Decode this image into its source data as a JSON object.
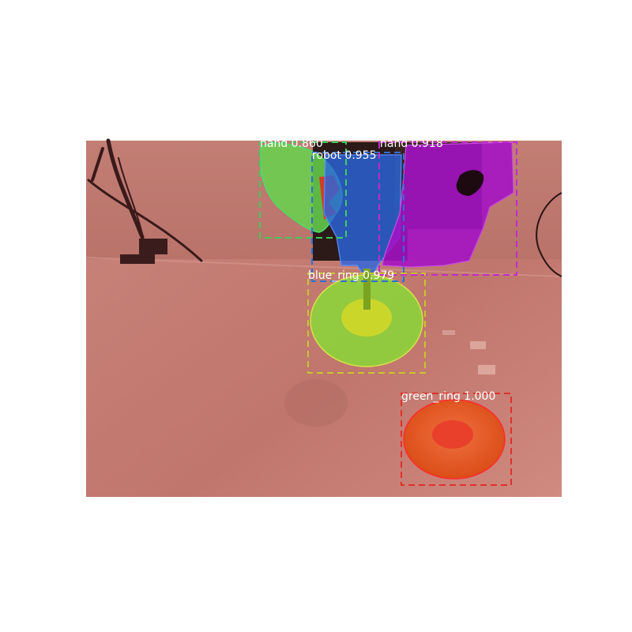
{
  "figure": {
    "background": "#ffffff",
    "photo_tint": "#c97a72"
  },
  "detections": [
    {
      "id": "hand-left",
      "label": "hand",
      "score": "0.860",
      "caption": "hand 0.860",
      "color": "#3ccf5a"
    },
    {
      "id": "robot",
      "label": "robot",
      "score": "0.955",
      "caption": "robot 0.955",
      "color": "#2f6fd6"
    },
    {
      "id": "hand-right",
      "label": "hand",
      "score": "0.918",
      "caption": "hand 0.918",
      "color": "#c02ad0"
    },
    {
      "id": "blue-ring",
      "label": "blue_ring",
      "score": "0.979",
      "caption": "blue_ring 0.979",
      "color": "#c9c62c"
    },
    {
      "id": "green-ring",
      "label": "green_ring",
      "score": "1.000",
      "caption": "green_ring 1.000",
      "color": "#e0302c"
    }
  ]
}
